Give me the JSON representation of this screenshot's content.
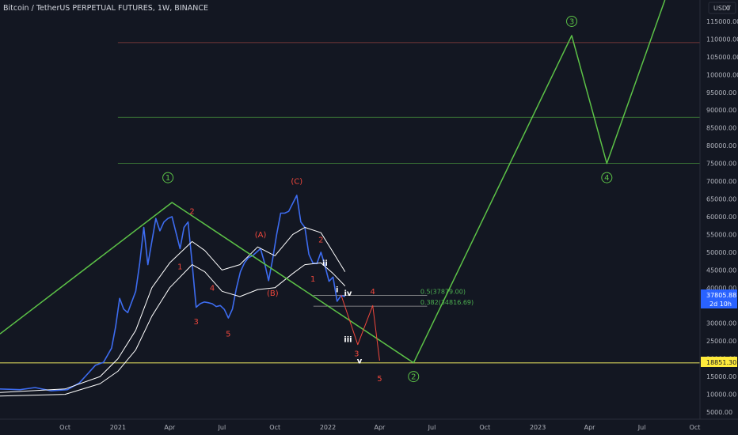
{
  "header": {
    "symbol_title": "Bitcoin / TetherUS PERPETUAL FUTURES, 1W, BINANCE",
    "currency": "USDT",
    "log_mark": "0"
  },
  "price_badges": {
    "last_price": "37805.88",
    "countdown": "2d 10h",
    "level_price": "18851.30"
  },
  "colors": {
    "background": "#131722",
    "price_line": "#3d6cf0",
    "projection": "#5cc247",
    "wave_red": "#f0473c",
    "ma": "#ffffff",
    "last_price_badge": "#2962ff",
    "level_badge": "#ffeb3b"
  },
  "chart_data": {
    "type": "line",
    "symbol": "BTCUSDT.P",
    "timeframe": "1W",
    "ylim": [
      3000,
      121000
    ],
    "y_ticks": [
      5000,
      10000,
      15000,
      20000,
      25000,
      30000,
      35000,
      40000,
      45000,
      50000,
      55000,
      60000,
      65000,
      70000,
      75000,
      80000,
      85000,
      90000,
      95000,
      100000,
      105000,
      110000,
      115000
    ],
    "y_tick_labels": [
      "5000.00",
      "10000.00",
      "15000.00",
      "20000.00",
      "25000.00",
      "30000.00",
      "35000.00",
      "40000.00",
      "45000.00",
      "50000.00",
      "55000.00",
      "60000.00",
      "65000.00",
      "70000.00",
      "75000.00",
      "80000.00",
      "85000.00",
      "90000.00",
      "95000.00",
      "100000.00",
      "105000.00",
      "110000.00",
      "115000.00"
    ],
    "x_ticks": [
      {
        "date": "2020-10-01",
        "label": "Oct"
      },
      {
        "date": "2021-01-01",
        "label": "2021"
      },
      {
        "date": "2021-04-01",
        "label": "Apr"
      },
      {
        "date": "2021-07-01",
        "label": "Jul"
      },
      {
        "date": "2021-10-01",
        "label": "Oct"
      },
      {
        "date": "2022-01-01",
        "label": "2022"
      },
      {
        "date": "2022-04-01",
        "label": "Apr"
      },
      {
        "date": "2022-07-01",
        "label": "Jul"
      },
      {
        "date": "2022-10-01",
        "label": "Oct"
      },
      {
        "date": "2023-01-01",
        "label": "2023"
      },
      {
        "date": "2023-04-01",
        "label": "Apr"
      },
      {
        "date": "2023-07-01",
        "label": "Jul"
      },
      {
        "date": "2023-10-01",
        "label": "Oct"
      }
    ],
    "x_range": [
      "2020-06-10",
      "2023-10-10"
    ],
    "series": [
      {
        "key": "price",
        "points": [
          [
            "2020-06-10",
            11500
          ],
          [
            "2020-07-15",
            11300
          ],
          [
            "2020-08-10",
            11900
          ],
          [
            "2020-09-07",
            11000
          ],
          [
            "2020-10-05",
            11300
          ],
          [
            "2020-10-26",
            13200
          ],
          [
            "2020-11-09",
            15700
          ],
          [
            "2020-11-23",
            18200
          ],
          [
            "2020-12-07",
            19000
          ],
          [
            "2020-12-21",
            23000
          ],
          [
            "2020-12-28",
            29000
          ],
          [
            "2021-01-04",
            37000
          ],
          [
            "2021-01-11",
            34000
          ],
          [
            "2021-01-18",
            33000
          ],
          [
            "2021-02-01",
            39000
          ],
          [
            "2021-02-08",
            47000
          ],
          [
            "2021-02-15",
            57000
          ],
          [
            "2021-02-22",
            46500
          ],
          [
            "2021-03-08",
            59500
          ],
          [
            "2021-03-15",
            56000
          ],
          [
            "2021-03-22",
            58500
          ],
          [
            "2021-03-29",
            59500
          ],
          [
            "2021-04-05",
            60000
          ],
          [
            "2021-04-19",
            51000
          ],
          [
            "2021-04-26",
            57000
          ],
          [
            "2021-05-03",
            58500
          ],
          [
            "2021-05-10",
            47000
          ],
          [
            "2021-05-17",
            34500
          ],
          [
            "2021-05-24",
            35500
          ],
          [
            "2021-05-31",
            36000
          ],
          [
            "2021-06-07",
            35800
          ],
          [
            "2021-06-14",
            35500
          ],
          [
            "2021-06-21",
            34700
          ],
          [
            "2021-06-28",
            35000
          ],
          [
            "2021-07-05",
            33900
          ],
          [
            "2021-07-12",
            31500
          ],
          [
            "2021-07-19",
            34000
          ],
          [
            "2021-07-26",
            39800
          ],
          [
            "2021-08-02",
            44500
          ],
          [
            "2021-08-09",
            47000
          ],
          [
            "2021-08-16",
            48500
          ],
          [
            "2021-08-23",
            49000
          ],
          [
            "2021-09-06",
            51000
          ],
          [
            "2021-09-13",
            47000
          ],
          [
            "2021-09-20",
            42000
          ],
          [
            "2021-09-27",
            48000
          ],
          [
            "2021-10-04",
            55000
          ],
          [
            "2021-10-11",
            61000
          ],
          [
            "2021-10-18",
            61000
          ],
          [
            "2021-10-25",
            61500
          ],
          [
            "2021-11-08",
            66000
          ],
          [
            "2021-11-15",
            58500
          ],
          [
            "2021-11-22",
            57000
          ],
          [
            "2021-11-29",
            49400
          ],
          [
            "2021-12-06",
            47000
          ],
          [
            "2021-12-13",
            46800
          ],
          [
            "2021-12-20",
            50000
          ],
          [
            "2021-12-27",
            46200
          ],
          [
            "2022-01-03",
            41800
          ],
          [
            "2022-01-10",
            43000
          ],
          [
            "2022-01-17",
            36200
          ],
          [
            "2022-01-24",
            37800
          ],
          [
            "2022-01-31",
            37500
          ]
        ]
      },
      {
        "key": "ma_fast",
        "points": [
          [
            "2020-06-10",
            10500
          ],
          [
            "2020-10-01",
            11500
          ],
          [
            "2020-12-01",
            15000
          ],
          [
            "2021-01-01",
            20000
          ],
          [
            "2021-02-01",
            28000
          ],
          [
            "2021-03-01",
            40000
          ],
          [
            "2021-04-01",
            47000
          ],
          [
            "2021-05-10",
            53000
          ],
          [
            "2021-06-01",
            50500
          ],
          [
            "2021-07-01",
            45000
          ],
          [
            "2021-08-01",
            46500
          ],
          [
            "2021-09-01",
            51500
          ],
          [
            "2021-10-01",
            49000
          ],
          [
            "2021-11-01",
            55000
          ],
          [
            "2021-11-22",
            57000
          ],
          [
            "2021-12-20",
            55500
          ],
          [
            "2022-01-10",
            50000
          ],
          [
            "2022-01-31",
            44500
          ]
        ]
      },
      {
        "key": "ma_slow",
        "points": [
          [
            "2020-06-10",
            9500
          ],
          [
            "2020-10-01",
            10000
          ],
          [
            "2020-12-01",
            13000
          ],
          [
            "2021-01-01",
            16500
          ],
          [
            "2021-02-01",
            22500
          ],
          [
            "2021-03-01",
            32000
          ],
          [
            "2021-04-01",
            40000
          ],
          [
            "2021-05-10",
            46500
          ],
          [
            "2021-06-01",
            44500
          ],
          [
            "2021-07-01",
            39000
          ],
          [
            "2021-08-01",
            37500
          ],
          [
            "2021-09-01",
            39500
          ],
          [
            "2021-10-01",
            40000
          ],
          [
            "2021-11-01",
            44000
          ],
          [
            "2021-11-22",
            46500
          ],
          [
            "2021-12-20",
            47000
          ],
          [
            "2022-01-10",
            44000
          ],
          [
            "2022-01-31",
            40500
          ]
        ]
      },
      {
        "key": "projection_major",
        "points": [
          [
            "2020-06-10",
            27000
          ],
          [
            "2021-04-05",
            64000
          ],
          [
            "2022-05-30",
            18851.3
          ],
          [
            "2023-03-01",
            111000
          ],
          [
            "2023-05-01",
            75000
          ],
          [
            "2023-08-10",
            121000
          ]
        ]
      },
      {
        "key": "projection_minor",
        "points": [
          [
            "2022-01-24",
            38000
          ],
          [
            "2022-02-22",
            24000
          ],
          [
            "2022-03-20",
            35000
          ],
          [
            "2022-04-01",
            19500
          ]
        ]
      }
    ],
    "horizontal_levels": [
      {
        "price": 18851.3,
        "color": "#d4d05a",
        "label": "18851.30"
      },
      {
        "price": 75000,
        "color": "#5cc247",
        "label": ""
      },
      {
        "price": 88000,
        "color": "#5cc247",
        "label": ""
      },
      {
        "price": 109000,
        "color": "#c2504c",
        "label": ""
      }
    ],
    "fib_levels": [
      {
        "price": 37879,
        "label": "0.5(37879.00)",
        "start": "2022-01-31",
        "end": "2022-04-01"
      },
      {
        "price": 34816.69,
        "label": "0.382(34816.69)",
        "start": "2022-01-31",
        "end": "2022-04-01"
      }
    ],
    "wave_labels": [
      {
        "text": "1",
        "date": "2021-03-29",
        "price": 71000,
        "circle": true,
        "color": "#5cc247"
      },
      {
        "text": "2",
        "date": "2022-05-30",
        "price": 15000,
        "circle": true,
        "color": "#5cc247"
      },
      {
        "text": "3",
        "date": "2023-03-01",
        "price": 115000,
        "circle": true,
        "color": "#5cc247"
      },
      {
        "text": "4",
        "date": "2023-05-01",
        "price": 71000,
        "circle": true,
        "color": "#5cc247"
      },
      {
        "text": "1",
        "date": "2021-04-19",
        "price": 46000,
        "circle": false,
        "color": "#f0473c"
      },
      {
        "text": "2",
        "date": "2021-05-10",
        "price": 61500,
        "circle": false,
        "color": "#f0473c"
      },
      {
        "text": "3",
        "date": "2021-05-17",
        "price": 30500,
        "circle": false,
        "color": "#f0473c"
      },
      {
        "text": "4",
        "date": "2021-06-14",
        "price": 40000,
        "circle": false,
        "color": "#f0473c"
      },
      {
        "text": "5",
        "date": "2021-07-12",
        "price": 27000,
        "circle": false,
        "color": "#f0473c"
      },
      {
        "text": "(A)",
        "date": "2021-09-06",
        "price": 55000,
        "circle": false,
        "color": "#f0473c"
      },
      {
        "text": "(B)",
        "date": "2021-09-27",
        "price": 38500,
        "circle": false,
        "color": "#f0473c"
      },
      {
        "text": "(C)",
        "date": "2021-11-08",
        "price": 70000,
        "circle": false,
        "color": "#f0473c"
      },
      {
        "text": "1",
        "date": "2021-12-06",
        "price": 42500,
        "circle": false,
        "color": "#f0473c"
      },
      {
        "text": "2",
        "date": "2021-12-20",
        "price": 53500,
        "circle": false,
        "color": "#f0473c"
      },
      {
        "text": "3",
        "date": "2022-02-20",
        "price": 21500,
        "circle": false,
        "color": "#f0473c"
      },
      {
        "text": "4",
        "date": "2022-03-20",
        "price": 39000,
        "circle": false,
        "color": "#f0473c"
      },
      {
        "text": "5",
        "date": "2022-04-01",
        "price": 14500,
        "circle": false,
        "color": "#f0473c"
      },
      {
        "text": "i",
        "date": "2022-01-17",
        "price": 39500,
        "circle": false,
        "color": "#ffffff"
      },
      {
        "text": "ii",
        "date": "2021-12-27",
        "price": 47000,
        "circle": false,
        "color": "#ffffff"
      },
      {
        "text": "iii",
        "date": "2022-02-05",
        "price": 25500,
        "circle": false,
        "color": "#ffffff"
      },
      {
        "text": "iv",
        "date": "2022-02-05",
        "price": 38500,
        "circle": false,
        "color": "#ffffff"
      },
      {
        "text": "v",
        "date": "2022-02-25",
        "price": 19500,
        "circle": false,
        "color": "#ffffff"
      }
    ]
  }
}
